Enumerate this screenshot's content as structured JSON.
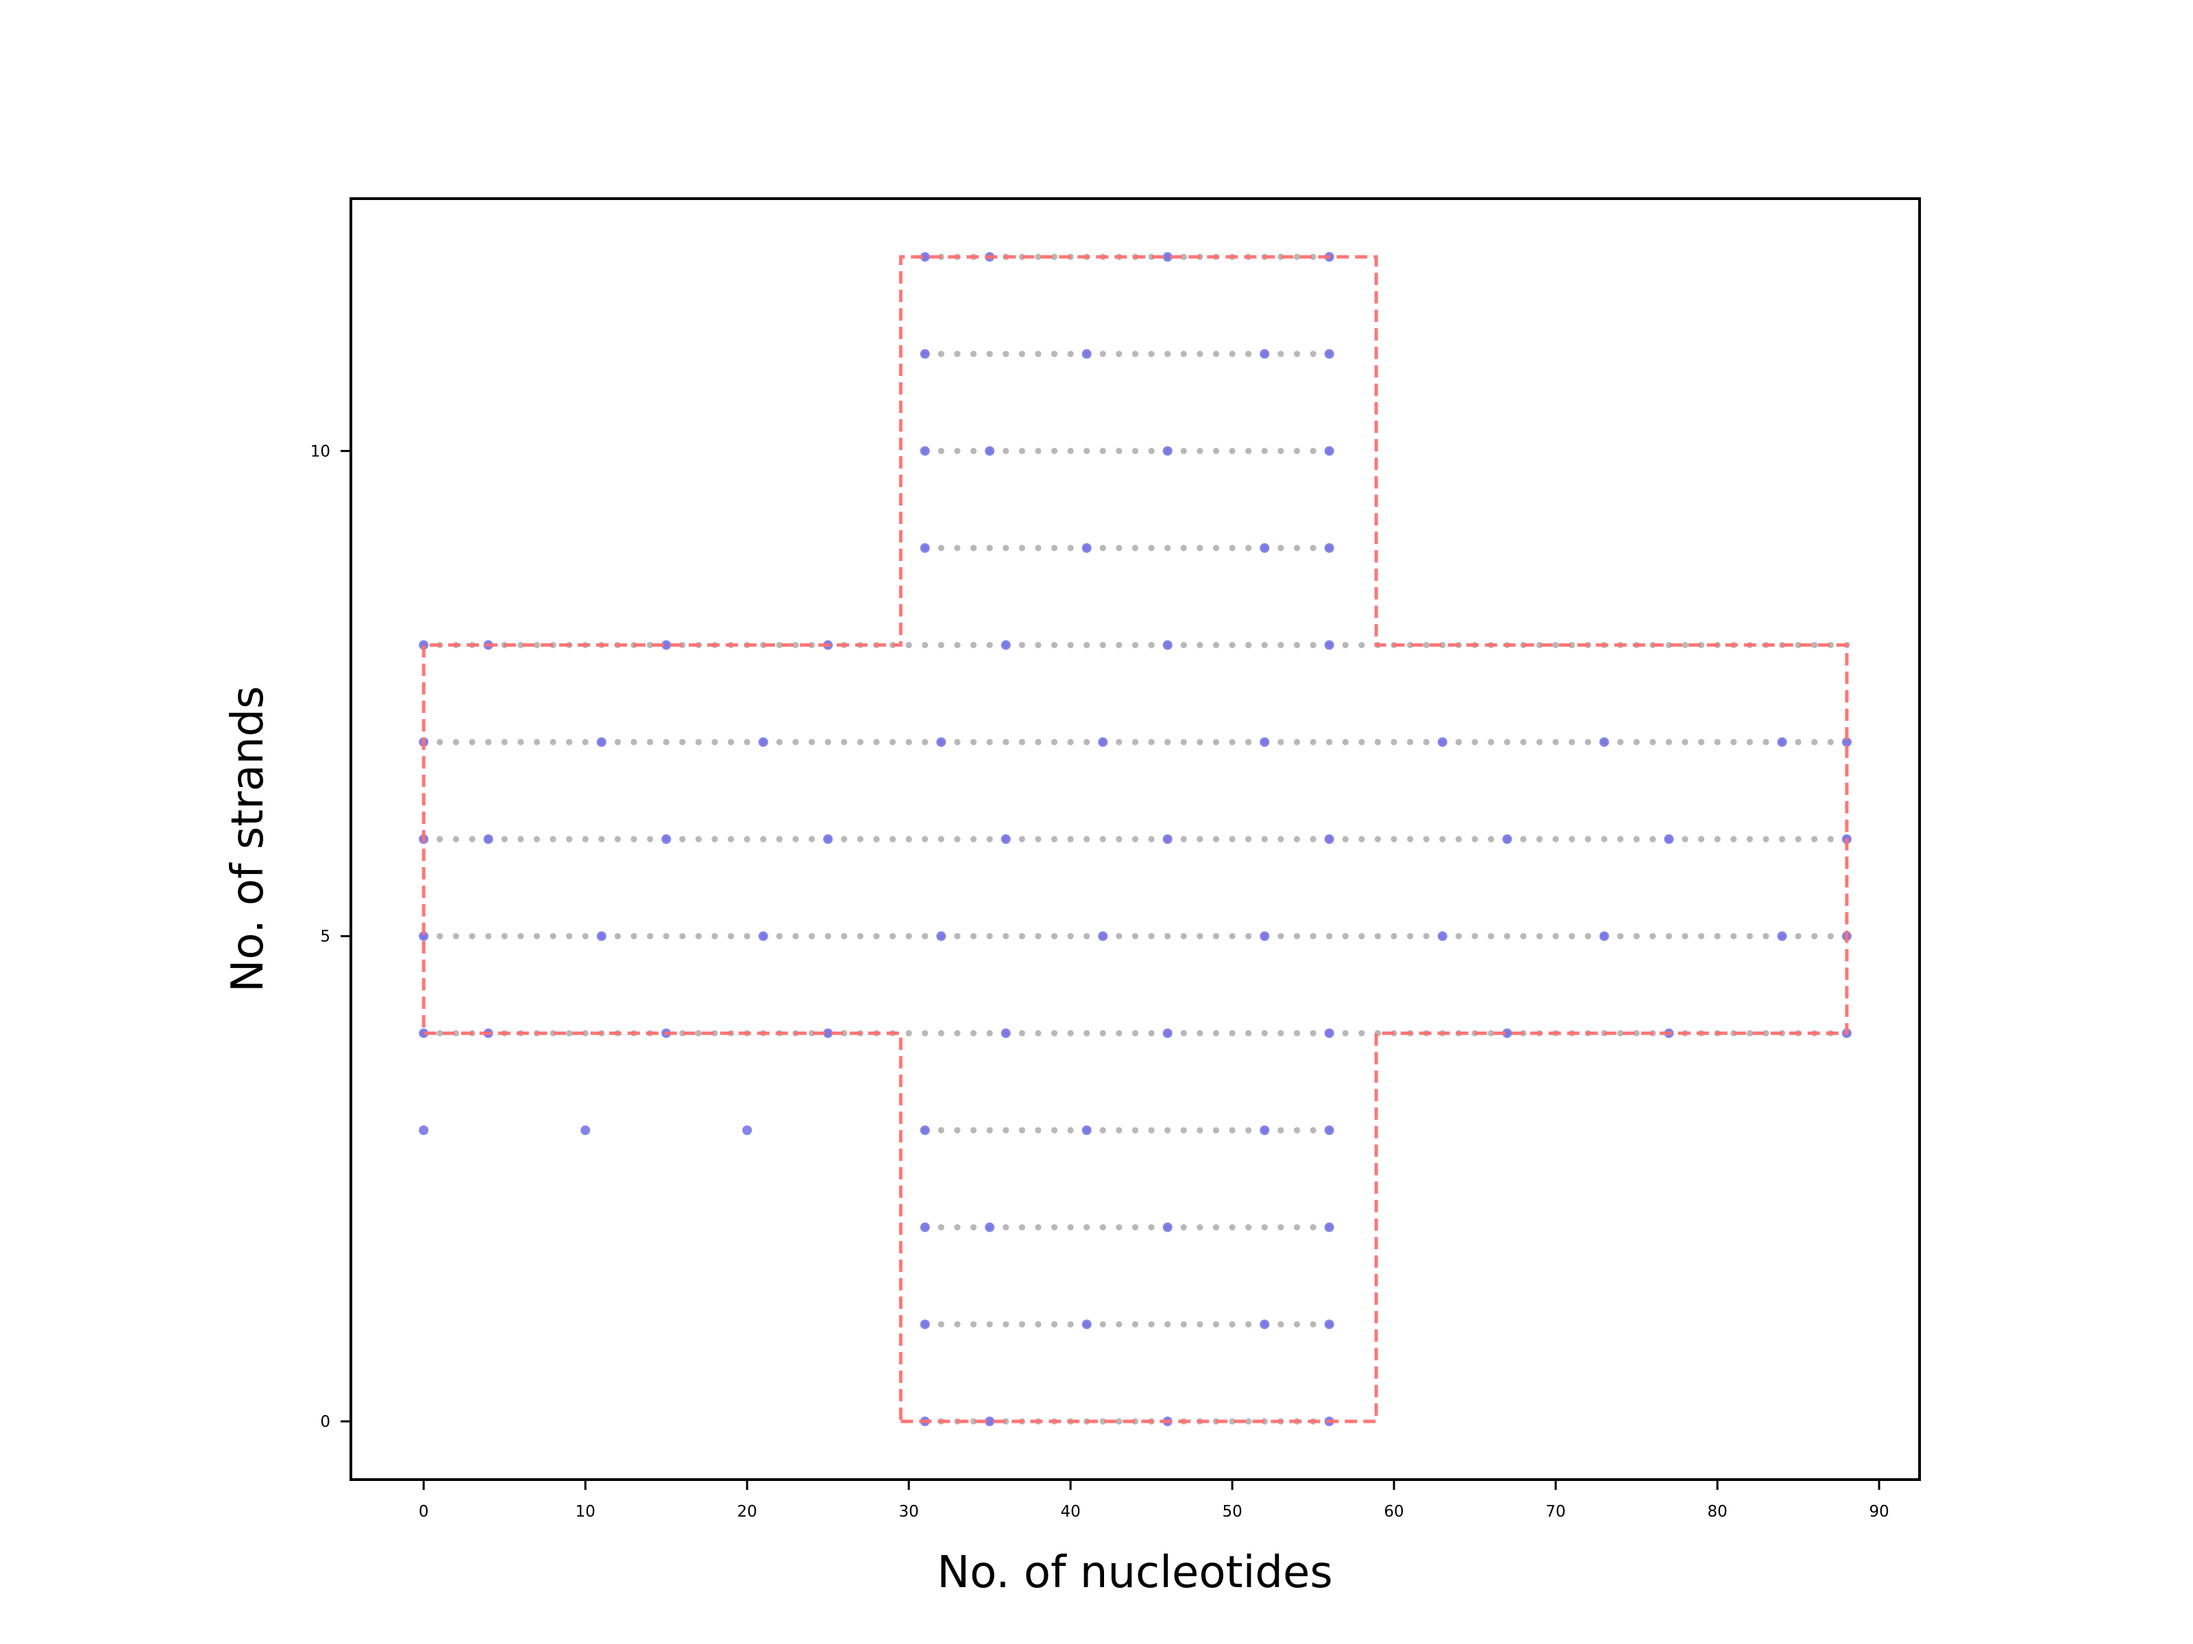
{
  "chart_data": {
    "type": "scatter",
    "title": "",
    "xlabel": "No. of nucleotides",
    "ylabel": "No. of strands",
    "xlim": [
      -4.5,
      92.5
    ],
    "ylim": [
      -0.6,
      12.6
    ],
    "xticks": [
      "0",
      "10",
      "20",
      "30",
      "40",
      "50",
      "60",
      "70",
      "80",
      "90"
    ],
    "yticks": [
      "0",
      "5",
      "10"
    ],
    "grid": false,
    "colors": {
      "strand_dots": "#b8b8b8",
      "crossover_points": "#6f6fe8",
      "outline": "#ff7070"
    },
    "strand_rows": [
      {
        "y": 0,
        "x_start": 31,
        "x_end": 56
      },
      {
        "y": 1,
        "x_start": 31,
        "x_end": 56
      },
      {
        "y": 2,
        "x_start": 31,
        "x_end": 56
      },
      {
        "y": 3,
        "x_start": 31,
        "x_end": 56
      },
      {
        "y": 4,
        "x_start": 0,
        "x_end": 88
      },
      {
        "y": 5,
        "x_start": 0,
        "x_end": 88
      },
      {
        "y": 6,
        "x_start": 0,
        "x_end": 88
      },
      {
        "y": 7,
        "x_start": 0,
        "x_end": 88
      },
      {
        "y": 8,
        "x_start": 0,
        "x_end": 88
      },
      {
        "y": 9,
        "x_start": 31,
        "x_end": 56
      },
      {
        "y": 10,
        "x_start": 31,
        "x_end": 56
      },
      {
        "y": 11,
        "x_start": 31,
        "x_end": 56
      },
      {
        "y": 12,
        "x_start": 31,
        "x_end": 56
      }
    ],
    "crossover_points": [
      {
        "y": 0,
        "x": [
          31,
          35,
          46,
          56
        ]
      },
      {
        "y": 1,
        "x": [
          31,
          41,
          52,
          56
        ]
      },
      {
        "y": 2,
        "x": [
          31,
          35,
          46,
          56
        ]
      },
      {
        "y": 3,
        "x": [
          0,
          10,
          20,
          31,
          41,
          52,
          56
        ]
      },
      {
        "y": 4,
        "x": [
          0,
          4,
          15,
          25,
          36,
          46,
          56,
          67,
          77,
          88
        ]
      },
      {
        "y": 5,
        "x": [
          0,
          11,
          21,
          32,
          42,
          52,
          63,
          73,
          84,
          88
        ]
      },
      {
        "y": 6,
        "x": [
          0,
          4,
          15,
          25,
          36,
          46,
          56,
          67,
          77,
          88
        ]
      },
      {
        "y": 7,
        "x": [
          0,
          11,
          21,
          32,
          42,
          52,
          63,
          73,
          84,
          88
        ]
      },
      {
        "y": 8,
        "x": [
          0,
          4,
          15,
          25,
          36,
          46,
          56
        ]
      },
      {
        "y": 9,
        "x": [
          31,
          41,
          52,
          56
        ]
      },
      {
        "y": 10,
        "x": [
          31,
          35,
          46,
          56
        ]
      },
      {
        "y": 11,
        "x": [
          31,
          41,
          52,
          56
        ]
      },
      {
        "y": 12,
        "x": [
          31,
          35,
          46,
          56
        ]
      }
    ],
    "outline": [
      [
        29.5,
        0
      ],
      [
        58.9,
        0
      ],
      [
        58.9,
        4
      ],
      [
        88,
        4
      ],
      [
        88,
        8
      ],
      [
        58.9,
        8
      ],
      [
        58.9,
        12
      ],
      [
        29.5,
        12
      ],
      [
        29.5,
        8
      ],
      [
        0,
        8
      ],
      [
        0,
        4
      ],
      [
        29.5,
        4
      ],
      [
        29.5,
        0
      ]
    ]
  }
}
